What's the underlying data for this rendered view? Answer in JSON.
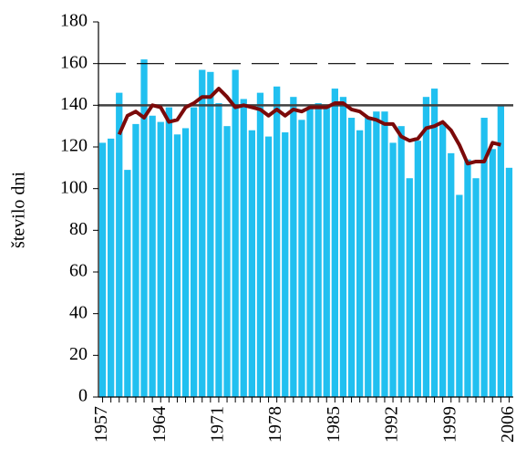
{
  "chart_data": {
    "type": "bar",
    "y_label": "število dni",
    "categories": [
      "1957",
      null,
      null,
      null,
      null,
      null,
      null,
      "1964",
      null,
      null,
      null,
      null,
      null,
      null,
      "1971",
      null,
      null,
      null,
      null,
      null,
      null,
      "1978",
      null,
      null,
      null,
      null,
      null,
      null,
      "1985",
      null,
      null,
      null,
      null,
      null,
      null,
      "1992",
      null,
      null,
      null,
      null,
      null,
      null,
      "1999",
      null,
      null,
      null,
      null,
      null,
      null,
      "2006"
    ],
    "series": [
      {
        "type": "bar",
        "color": "#21c0f0",
        "values": [
          122,
          124,
          146,
          109,
          131,
          162,
          135,
          132,
          139,
          126,
          129,
          139,
          157,
          156,
          141,
          130,
          157,
          143,
          128,
          146,
          125,
          149,
          127,
          144,
          133,
          139,
          141,
          139,
          148,
          144,
          134,
          128,
          134,
          137,
          137,
          122,
          130,
          105,
          123,
          144,
          148,
          132,
          117,
          97,
          114,
          105,
          134,
          119,
          140,
          110
        ]
      },
      {
        "type": "line",
        "color": "#7b0a0a",
        "values": [
          null,
          null,
          126,
          135,
          137,
          134,
          140,
          139,
          132,
          133,
          139,
          141,
          144,
          144,
          148,
          144,
          139,
          140,
          139,
          138,
          135,
          138,
          135,
          138,
          137,
          139,
          139,
          139,
          141,
          141,
          138,
          137,
          134,
          133,
          131,
          131,
          125,
          123,
          124,
          129,
          130,
          132,
          128,
          121,
          112,
          113,
          113,
          122,
          121,
          null
        ]
      }
    ],
    "reference_lines": [
      {
        "value": 140,
        "style": "solid",
        "color": "#404040"
      },
      {
        "value": 160,
        "style": "dashed",
        "color": "#000000"
      }
    ],
    "ylim": [
      0,
      180
    ],
    "yticks": [
      0,
      20,
      40,
      60,
      80,
      100,
      120,
      140,
      160,
      180
    ],
    "grid": false
  }
}
